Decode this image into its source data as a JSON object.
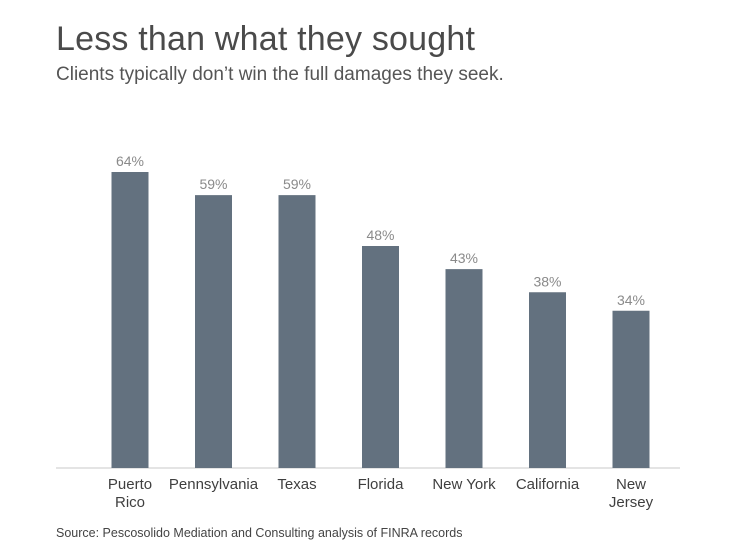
{
  "title": "Less than what they sought",
  "subtitle": "Clients typically don’t win the full damages they seek.",
  "source": "Source: Pescosolido Mediation and Consulting analysis of FINRA records",
  "colors": {
    "bar": "#63717f",
    "value_label": "#8a8a8a",
    "category_label": "#3f3f3f"
  },
  "chart_data": {
    "type": "bar",
    "categories": [
      [
        "Puerto",
        "Rico"
      ],
      [
        "Pennsylvania"
      ],
      [
        "Texas"
      ],
      [
        "Florida"
      ],
      [
        "New York"
      ],
      [
        "California"
      ],
      [
        "New",
        "Jersey"
      ]
    ],
    "values": [
      64,
      59,
      59,
      48,
      43,
      38,
      34
    ],
    "value_labels": [
      "64%",
      "59%",
      "59%",
      "48%",
      "43%",
      "38%",
      "34%"
    ],
    "ylim": [
      0,
      64
    ],
    "grid": false,
    "legend": "none"
  }
}
